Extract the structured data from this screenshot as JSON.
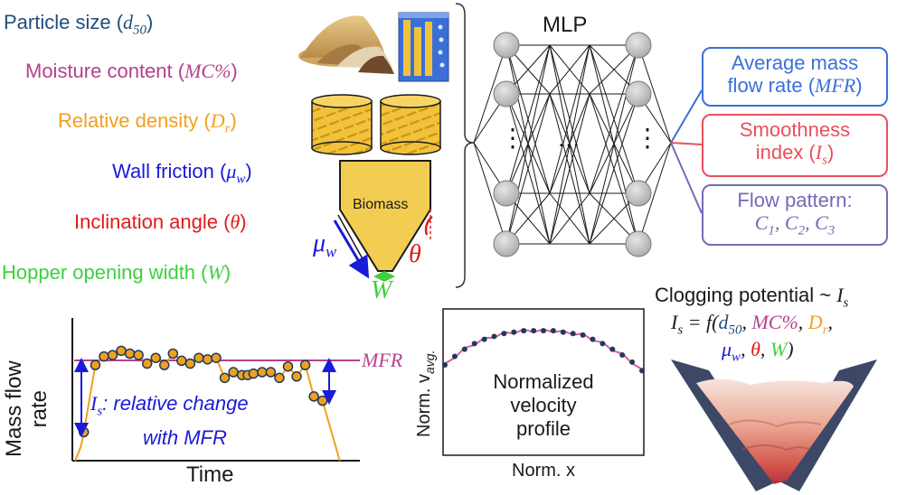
{
  "inputs": {
    "d50": {
      "label": "Particle size (",
      "sym": "d",
      "sub": "50",
      "close": ")",
      "color": "#1f4e79"
    },
    "mc": {
      "label": "Moisture content (",
      "sym": "MC%",
      "close": ")",
      "color": "#b4418e"
    },
    "dr": {
      "label": "Relative density (",
      "sym": "D",
      "sub": "r",
      "close": ")",
      "color": "#f0a020"
    },
    "mu": {
      "label": "Wall friction (",
      "sym": "μ",
      "sub": "w",
      "close": ")",
      "color": "#1a1adb"
    },
    "theta": {
      "label": "Inclination angle (",
      "sym": "θ",
      "close": ")",
      "color": "#e01b1b"
    },
    "w": {
      "label": "Hopper opening width (",
      "sym": "W",
      "close": ")",
      "color": "#3fcf3f"
    }
  },
  "hopper": {
    "material": "Biomass",
    "mu_sym": "μ",
    "mu_sub": "w",
    "theta_sym": "θ",
    "w_sym": "W"
  },
  "mlp": {
    "title": "MLP",
    "ellipsis": "…",
    "vdots": "⋮"
  },
  "outputs": {
    "mfr": {
      "line1": "Average mass",
      "line2_text": "flow rate (",
      "line2_sym": "MFR",
      "line2_close": ")",
      "color": "#3b6fd8"
    },
    "smooth": {
      "line1": "Smoothness",
      "line2_text": "index (",
      "line2_sym": "I",
      "line2_sub": "s",
      "line2_close": ")",
      "color": "#e8505b"
    },
    "pattern": {
      "line1": "Flow pattern:",
      "c1": "C",
      "c1_sub": "1",
      "c2": "C",
      "c2_sub": "2",
      "c3": "C",
      "c3_sub": "3",
      "color": "#7b68b5"
    }
  },
  "mass_flow_plot": {
    "ylabel_line1": "Mass flow",
    "ylabel_line2": "rate",
    "xlabel": "Time",
    "mfr_label": "MFR",
    "is_sym": "I",
    "is_sub": "s",
    "is_text1": ": relative change",
    "is_text2": "with MFR",
    "line_color": "#f0a020",
    "mfr_color": "#b4418e",
    "marker_fill": "#f0a020",
    "marker_edge": "#1f3a5c",
    "arrow_color": "#1a1adb"
  },
  "chart_data": {
    "type": "line",
    "title": "",
    "xlabel": "Time",
    "ylabel": "Mass flow rate",
    "mfr_level": 0.55,
    "ylim": [
      0,
      1
    ],
    "xlim": [
      0,
      1
    ],
    "samples": [
      {
        "x": 0.04,
        "y": 0.2
      },
      {
        "x": 0.08,
        "y": 0.67
      },
      {
        "x": 0.11,
        "y": 0.73
      },
      {
        "x": 0.14,
        "y": 0.74
      },
      {
        "x": 0.17,
        "y": 0.77
      },
      {
        "x": 0.2,
        "y": 0.75
      },
      {
        "x": 0.23,
        "y": 0.74
      },
      {
        "x": 0.26,
        "y": 0.68
      },
      {
        "x": 0.29,
        "y": 0.72
      },
      {
        "x": 0.32,
        "y": 0.67
      },
      {
        "x": 0.35,
        "y": 0.75
      },
      {
        "x": 0.38,
        "y": 0.7
      },
      {
        "x": 0.41,
        "y": 0.68
      },
      {
        "x": 0.44,
        "y": 0.72
      },
      {
        "x": 0.47,
        "y": 0.71
      },
      {
        "x": 0.5,
        "y": 0.72
      },
      {
        "x": 0.53,
        "y": 0.58
      },
      {
        "x": 0.56,
        "y": 0.62
      },
      {
        "x": 0.59,
        "y": 0.6
      },
      {
        "x": 0.61,
        "y": 0.6
      },
      {
        "x": 0.63,
        "y": 0.61
      },
      {
        "x": 0.66,
        "y": 0.62
      },
      {
        "x": 0.69,
        "y": 0.62
      },
      {
        "x": 0.72,
        "y": 0.58
      },
      {
        "x": 0.75,
        "y": 0.66
      },
      {
        "x": 0.78,
        "y": 0.59
      },
      {
        "x": 0.81,
        "y": 0.67
      },
      {
        "x": 0.84,
        "y": 0.45
      },
      {
        "x": 0.87,
        "y": 0.42
      }
    ]
  },
  "velocity_plot": {
    "ylabel": "Norm. v",
    "ylabel_sub": "avg.",
    "xlabel": "Norm. x",
    "center_line1": "Normalized",
    "center_line2": "velocity",
    "center_line3": "profile",
    "dots_color": "#1f3a5c",
    "line_color": "#d9609a"
  },
  "velocity_data": {
    "x": [
      0.0,
      0.05,
      0.1,
      0.15,
      0.2,
      0.25,
      0.3,
      0.35,
      0.4,
      0.45,
      0.5,
      0.55,
      0.6,
      0.65,
      0.7,
      0.75,
      0.8,
      0.85,
      0.9,
      0.95,
      1.0
    ],
    "y": [
      0.62,
      0.68,
      0.73,
      0.77,
      0.8,
      0.82,
      0.84,
      0.85,
      0.86,
      0.86,
      0.86,
      0.86,
      0.85,
      0.84,
      0.83,
      0.8,
      0.77,
      0.73,
      0.69,
      0.64,
      0.58
    ]
  },
  "clogging": {
    "line1": "Clogging potential ~ ",
    "line1_sym": "I",
    "line1_sub": "s",
    "eq_lhs": "I",
    "eq_lhs_sub": "s",
    "eq_mid": " = f(",
    "d50": "d",
    "d50_sub": "50",
    "mc": "MC%",
    "dr": "D",
    "dr_sub": "r",
    "mu": "μ",
    "mu_sub": "w",
    "theta": "θ",
    "w": "W",
    "sep": ", ",
    "close": ")"
  }
}
